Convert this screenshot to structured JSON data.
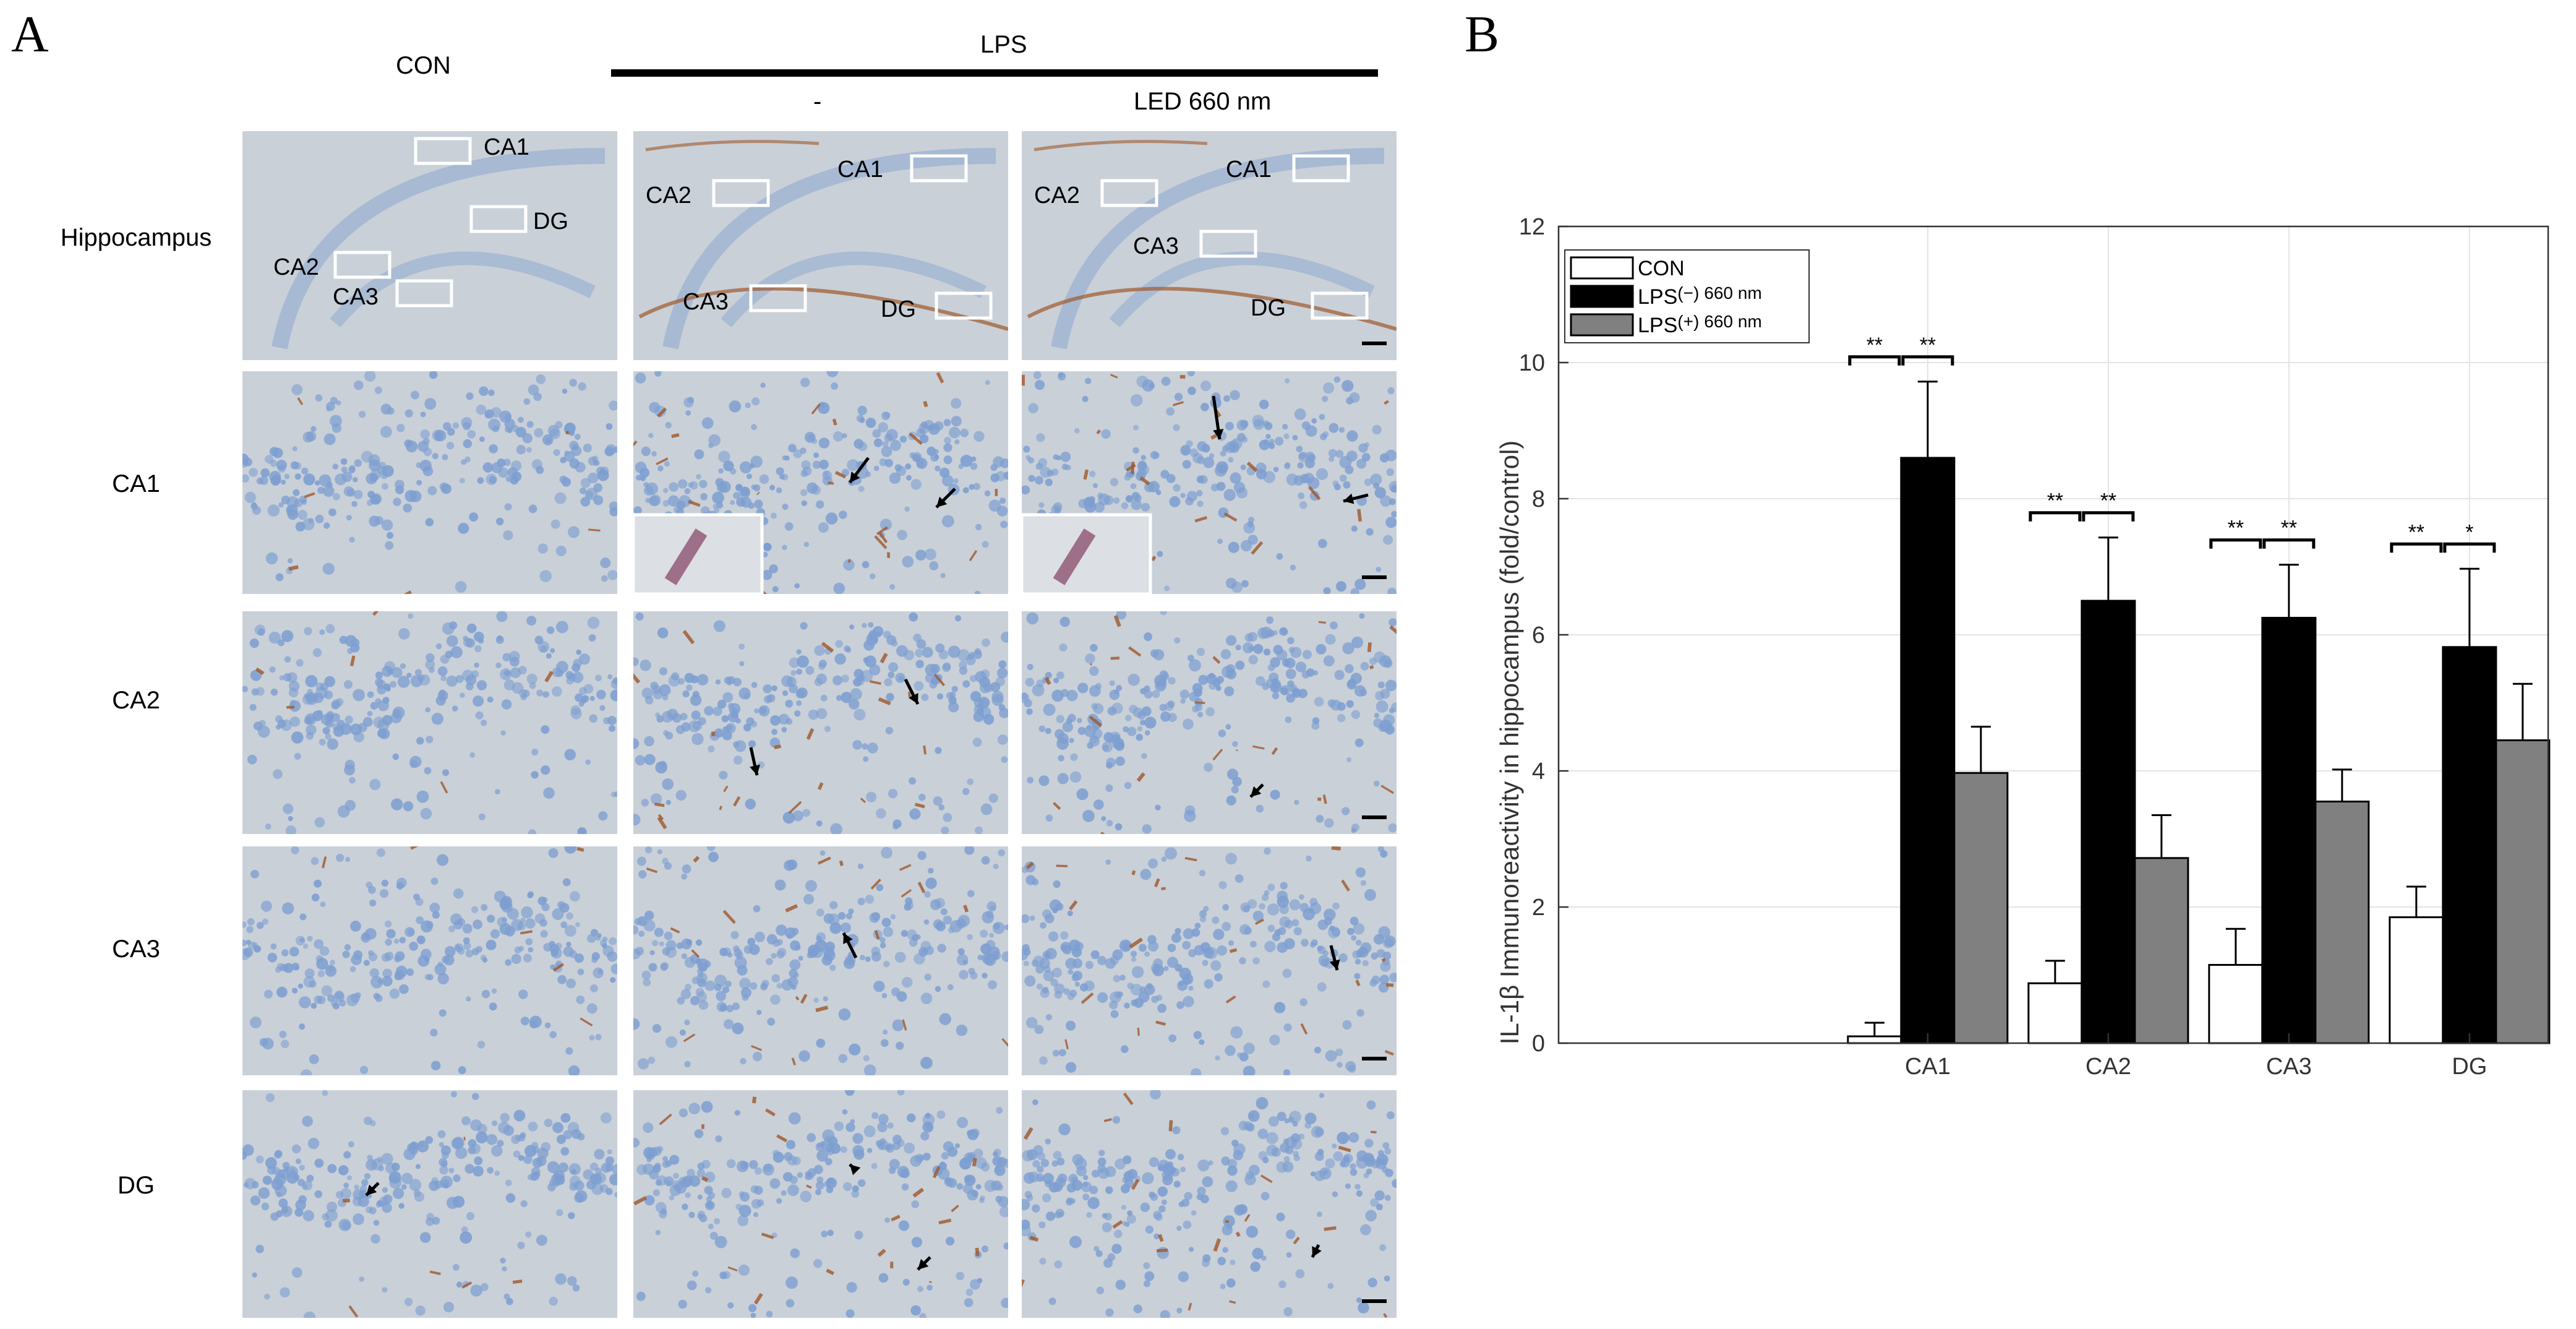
{
  "panel_a": {
    "letter": "A",
    "group_con": "CON",
    "group_lps": "LPS",
    "sub_minus": "-",
    "sub_led": "LED 660 nm",
    "row_labels": [
      "Hippocampus",
      "CA1",
      "CA2",
      "CA3",
      "DG"
    ],
    "roi_labels": {
      "con": [
        "CA1",
        "DG",
        "CA2",
        "CA3"
      ],
      "lps": [
        "CA1",
        "CA2",
        "CA3",
        "DG"
      ],
      "led": [
        "CA1",
        "CA2",
        "CA3",
        "DG"
      ]
    },
    "colors": {
      "tissue": "#c9d0d8",
      "nuclei": "#7d9ed0",
      "stain": "#a0582a",
      "arrow": "#000000"
    }
  },
  "panel_b": {
    "letter": "B",
    "chart_data": {
      "type": "bar",
      "ylabel": "IL-1β Immunoreactivity in hippocampus (fold/control)",
      "xlabel": "",
      "ylim": [
        0,
        12
      ],
      "yticks": [
        "0",
        "2",
        "4",
        "6",
        "8",
        "10",
        "12"
      ],
      "grid": true,
      "legend_position": "top-left",
      "categories": [
        "CA1",
        "CA2",
        "CA3",
        "DG"
      ],
      "series": [
        {
          "name": "CON",
          "color": "#ffffff",
          "values": [
            0.1,
            0.88,
            1.15,
            1.85
          ],
          "errors": [
            0.2,
            0.33,
            0.53,
            0.45
          ]
        },
        {
          "name": "LPS(−) 660 nm",
          "legend_main": "LPS",
          "legend_sign": "(−)",
          "legend_suffix": "660 nm",
          "color": "#000000",
          "values": [
            8.6,
            6.5,
            6.25,
            5.82
          ],
          "errors": [
            1.12,
            0.93,
            0.78,
            1.15
          ]
        },
        {
          "name": "LPS(+) 660 nm",
          "legend_main": "LPS",
          "legend_sign": "(+)",
          "legend_suffix": "660 nm",
          "color": "#808080",
          "values": [
            3.97,
            2.72,
            3.55,
            4.45
          ],
          "errors": [
            0.68,
            0.63,
            0.47,
            0.83
          ]
        }
      ],
      "significance": [
        {
          "category": "CA1",
          "pairs": [
            "**",
            "**"
          ]
        },
        {
          "category": "CA2",
          "pairs": [
            "**",
            "**"
          ]
        },
        {
          "category": "CA3",
          "pairs": [
            "**",
            "**"
          ]
        },
        {
          "category": "DG",
          "pairs": [
            "**",
            "*"
          ]
        }
      ]
    }
  }
}
